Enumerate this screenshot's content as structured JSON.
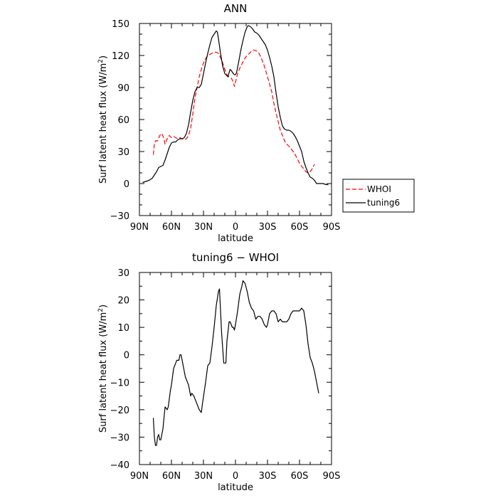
{
  "chart_data": [
    {
      "type": "line",
      "title": "ANN",
      "xlabel": "latitude",
      "ylabel": "Surf latent heat flux (W/m²)",
      "ylabel_parts": [
        "Surf latent heat flux (W/m",
        "2",
        ")"
      ],
      "xlim": [
        90,
        -90
      ],
      "ylim": [
        -30,
        150
      ],
      "x_ticks": [
        90,
        60,
        30,
        0,
        -30,
        -60,
        -90
      ],
      "x_tick_labels": [
        "90N",
        "60N",
        "30N",
        "0",
        "30S",
        "60S",
        "90S"
      ],
      "y_ticks": [
        -30,
        0,
        30,
        60,
        90,
        120,
        150
      ],
      "y_tick_labels": [
        "−30",
        "0",
        "30",
        "60",
        "90",
        "120",
        "150"
      ],
      "legend_placement": "right, outside",
      "series": [
        {
          "name": "WHOI",
          "color": "#ff0000",
          "dash": "dashed",
          "points": [
            [
              77,
              27
            ],
            [
              76,
              37
            ],
            [
              75,
              40
            ],
            [
              73,
              40
            ],
            [
              71,
              45
            ],
            [
              69,
              47
            ],
            [
              67,
              42
            ],
            [
              66,
              37
            ],
            [
              64,
              42
            ],
            [
              62,
              45
            ],
            [
              60,
              43
            ],
            [
              58,
              44
            ],
            [
              56,
              43
            ],
            [
              54,
              42
            ],
            [
              52,
              43
            ],
            [
              50,
              42
            ],
            [
              48,
              41
            ],
            [
              46,
              42
            ],
            [
              44,
              45
            ],
            [
              42,
              52
            ],
            [
              40,
              65
            ],
            [
              38,
              80
            ],
            [
              36,
              90
            ],
            [
              34,
              100
            ],
            [
              32,
              107
            ],
            [
              30,
              113
            ],
            [
              28,
              117
            ],
            [
              26,
              120
            ],
            [
              24,
              121
            ],
            [
              22,
              122
            ],
            [
              20,
              123
            ],
            [
              18,
              123
            ],
            [
              16,
              122
            ],
            [
              14,
              118
            ],
            [
              12,
              113
            ],
            [
              10,
              107
            ],
            [
              8,
              102
            ],
            [
              6,
              100
            ],
            [
              4,
              99
            ],
            [
              2,
              95
            ],
            [
              1,
              91
            ],
            [
              0,
              95
            ],
            [
              -2,
              103
            ],
            [
              -4,
              108
            ],
            [
              -6,
              112
            ],
            [
              -8,
              116
            ],
            [
              -10,
              119
            ],
            [
              -12,
              121
            ],
            [
              -14,
              123
            ],
            [
              -16,
              125
            ],
            [
              -18,
              125
            ],
            [
              -20,
              124
            ],
            [
              -22,
              122
            ],
            [
              -24,
              118
            ],
            [
              -26,
              113
            ],
            [
              -28,
              107
            ],
            [
              -30,
              100
            ],
            [
              -32,
              93
            ],
            [
              -34,
              86
            ],
            [
              -36,
              75
            ],
            [
              -38,
              66
            ],
            [
              -40,
              58
            ],
            [
              -42,
              50
            ],
            [
              -44,
              45
            ],
            [
              -46,
              40
            ],
            [
              -48,
              37
            ],
            [
              -50,
              35
            ],
            [
              -52,
              33
            ],
            [
              -54,
              30
            ],
            [
              -56,
              27
            ],
            [
              -58,
              23
            ],
            [
              -60,
              19
            ],
            [
              -62,
              16
            ],
            [
              -64,
              14
            ],
            [
              -66,
              11
            ],
            [
              -68,
              10
            ],
            [
              -70,
              11
            ],
            [
              -72,
              14
            ],
            [
              -74,
              18
            ]
          ]
        },
        {
          "name": "tuning6",
          "color": "#000000",
          "dash": "solid",
          "points": [
            [
              87,
              1
            ],
            [
              84,
              2
            ],
            [
              81,
              3
            ],
            [
              78,
              5
            ],
            [
              76,
              8
            ],
            [
              74,
              11
            ],
            [
              72,
              15
            ],
            [
              70,
              16
            ],
            [
              68,
              17
            ],
            [
              66,
              22
            ],
            [
              64,
              28
            ],
            [
              62,
              34
            ],
            [
              60,
              38
            ],
            [
              58,
              39
            ],
            [
              56,
              39
            ],
            [
              54,
              41
            ],
            [
              52,
              42
            ],
            [
              50,
              42
            ],
            [
              48,
              43
            ],
            [
              46,
              47
            ],
            [
              44,
              55
            ],
            [
              42,
              67
            ],
            [
              40,
              78
            ],
            [
              38,
              86
            ],
            [
              36,
              90
            ],
            [
              34,
              90
            ],
            [
              32,
              93
            ],
            [
              30,
              103
            ],
            [
              28,
              113
            ],
            [
              26,
              122
            ],
            [
              24,
              130
            ],
            [
              22,
              137
            ],
            [
              20,
              140
            ],
            [
              18,
              143
            ],
            [
              17,
              142
            ],
            [
              16,
              136
            ],
            [
              14,
              122
            ],
            [
              12,
              110
            ],
            [
              10,
              103
            ],
            [
              8,
              101
            ],
            [
              7,
              100
            ],
            [
              6,
              104
            ],
            [
              5,
              107
            ],
            [
              4,
              106
            ],
            [
              2,
              103
            ],
            [
              1,
              102
            ],
            [
              0,
              102
            ],
            [
              -1,
              104
            ],
            [
              -3,
              114
            ],
            [
              -5,
              125
            ],
            [
              -7,
              134
            ],
            [
              -9,
              142
            ],
            [
              -11,
              147
            ],
            [
              -12,
              148
            ],
            [
              -14,
              147
            ],
            [
              -16,
              145
            ],
            [
              -18,
              142
            ],
            [
              -20,
              141
            ],
            [
              -22,
              139
            ],
            [
              -24,
              136
            ],
            [
              -26,
              133
            ],
            [
              -28,
              130
            ],
            [
              -30,
              125
            ],
            [
              -32,
              118
            ],
            [
              -34,
              110
            ],
            [
              -36,
              100
            ],
            [
              -38,
              85
            ],
            [
              -40,
              72
            ],
            [
              -42,
              62
            ],
            [
              -44,
              54
            ],
            [
              -46,
              51
            ],
            [
              -48,
              50
            ],
            [
              -50,
              50
            ],
            [
              -52,
              49
            ],
            [
              -54,
              47
            ],
            [
              -56,
              44
            ],
            [
              -58,
              40
            ],
            [
              -60,
              35
            ],
            [
              -62,
              30
            ],
            [
              -64,
              21
            ],
            [
              -66,
              15
            ],
            [
              -68,
              10
            ],
            [
              -70,
              6
            ],
            [
              -72,
              5
            ],
            [
              -74,
              3
            ],
            [
              -76,
              0
            ],
            [
              -78,
              0
            ],
            [
              -80,
              0
            ],
            [
              -82,
              0
            ],
            [
              -85,
              -1
            ],
            [
              -87,
              -1
            ]
          ]
        }
      ]
    },
    {
      "type": "line",
      "title": "tuning6 − WHOI",
      "xlabel": "latitude",
      "ylabel": "Surf latent heat flux (W/m²)",
      "ylabel_parts": [
        "Surf latent heat flux (W/m",
        "2",
        ")"
      ],
      "xlim": [
        90,
        -90
      ],
      "ylim": [
        -40,
        30
      ],
      "x_ticks": [
        90,
        60,
        30,
        0,
        -30,
        -60,
        -90
      ],
      "x_tick_labels": [
        "90N",
        "60N",
        "30N",
        "0",
        "30S",
        "60S",
        "90S"
      ],
      "y_ticks": [
        -40,
        -30,
        -20,
        -10,
        0,
        10,
        20,
        30
      ],
      "y_tick_labels": [
        "−40",
        "−30",
        "−20",
        "−10",
        "0",
        "10",
        "20",
        "30"
      ],
      "series": [
        {
          "name": "",
          "color": "#000000",
          "dash": "solid",
          "points": [
            [
              77,
              -23
            ],
            [
              76,
              -30
            ],
            [
              75,
              -33
            ],
            [
              74,
              -33
            ],
            [
              73,
              -30
            ],
            [
              72,
              -29
            ],
            [
              71,
              -31
            ],
            [
              70,
              -31
            ],
            [
              68,
              -27
            ],
            [
              66,
              -19
            ],
            [
              64,
              -20
            ],
            [
              63,
              -19
            ],
            [
              61,
              -13
            ],
            [
              60,
              -11
            ],
            [
              58,
              -5
            ],
            [
              56,
              -3
            ],
            [
              55,
              -2
            ],
            [
              53,
              -2
            ],
            [
              52,
              0
            ],
            [
              51,
              0
            ],
            [
              49,
              -4
            ],
            [
              47,
              -8
            ],
            [
              45,
              -10
            ],
            [
              44,
              -11
            ],
            [
              42,
              -15
            ],
            [
              41,
              -14
            ],
            [
              39,
              -15
            ],
            [
              37,
              -17
            ],
            [
              34,
              -20
            ],
            [
              32,
              -21
            ],
            [
              31,
              -18
            ],
            [
              28,
              -10
            ],
            [
              26,
              -4
            ],
            [
              24,
              -3
            ],
            [
              22,
              3
            ],
            [
              20,
              10
            ],
            [
              18,
              18
            ],
            [
              16,
              23
            ],
            [
              15,
              24
            ],
            [
              13,
              8
            ],
            [
              11,
              -3
            ],
            [
              9,
              -3
            ],
            [
              8,
              5
            ],
            [
              6,
              12
            ],
            [
              5,
              12
            ],
            [
              3,
              10
            ],
            [
              2,
              10
            ],
            [
              1,
              9
            ],
            [
              0,
              11
            ],
            [
              -2,
              16
            ],
            [
              -4,
              22
            ],
            [
              -6,
              25
            ],
            [
              -7,
              27
            ],
            [
              -9,
              26
            ],
            [
              -11,
              23
            ],
            [
              -13,
              19
            ],
            [
              -15,
              17
            ],
            [
              -17,
              16
            ],
            [
              -19,
              13
            ],
            [
              -21,
              14
            ],
            [
              -23,
              14
            ],
            [
              -25,
              13
            ],
            [
              -27,
              11
            ],
            [
              -29,
              10
            ],
            [
              -30,
              11
            ],
            [
              -32,
              15
            ],
            [
              -34,
              16
            ],
            [
              -36,
              16
            ],
            [
              -38,
              15
            ],
            [
              -40,
              12
            ],
            [
              -42,
              13
            ],
            [
              -44,
              12
            ],
            [
              -46,
              12
            ],
            [
              -48,
              12
            ],
            [
              -50,
              13
            ],
            [
              -52,
              15
            ],
            [
              -54,
              16
            ],
            [
              -56,
              16
            ],
            [
              -58,
              16
            ],
            [
              -60,
              16
            ],
            [
              -62,
              17
            ],
            [
              -64,
              16
            ],
            [
              -66,
              11
            ],
            [
              -68,
              4
            ],
            [
              -70,
              -1
            ],
            [
              -72,
              -3
            ],
            [
              -74,
              -6
            ],
            [
              -76,
              -10
            ],
            [
              -78,
              -14
            ]
          ]
        }
      ]
    }
  ]
}
